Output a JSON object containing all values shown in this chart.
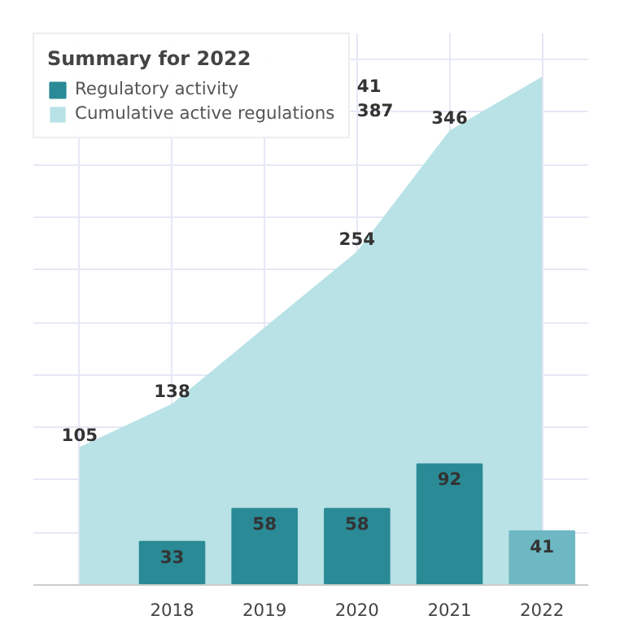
{
  "chart_data": {
    "type": "bar",
    "categories": [
      null,
      "2018",
      "2019",
      "2020",
      "2021",
      "2022"
    ],
    "series": [
      {
        "name": "Cumulative active regulations",
        "type": "area",
        "color": "#b8e2e6",
        "values": [
          105,
          138,
          196,
          254,
          346,
          387
        ],
        "value_labels": [
          "105",
          "138",
          null,
          "254",
          "346",
          null
        ]
      },
      {
        "name": "Regulatory activity",
        "color": "#0f7b85",
        "colors": [
          "#2a8a96",
          "#2a8a96",
          "#2a8a96",
          "#2a8a96",
          "#2a8a96",
          "#6db8c2"
        ],
        "values": [
          null,
          33,
          58,
          58,
          92,
          41
        ],
        "value_labels": [
          null,
          "33",
          "58",
          "58",
          "92",
          "41"
        ]
      }
    ],
    "ylim": [
      0,
      420
    ],
    "yticks": [
      {
        "value": 0,
        "label": null
      },
      {
        "value": 40,
        "label": null
      },
      {
        "value": 80,
        "label": null
      },
      {
        "value": 120,
        "label": null
      },
      {
        "value": 160,
        "label": null
      },
      {
        "value": 200,
        "label": null
      },
      {
        "value": 240,
        "label": null
      },
      {
        "value": 280,
        "label": null
      },
      {
        "value": 320,
        "label": null
      },
      {
        "value": 360,
        "label": null
      },
      {
        "value": 400,
        "label": null
      }
    ],
    "tick_labels": "x",
    "grid": true,
    "legend": "top left",
    "legend_title": "Summary for 2022",
    "annotations": [
      "41",
      "387"
    ]
  }
}
